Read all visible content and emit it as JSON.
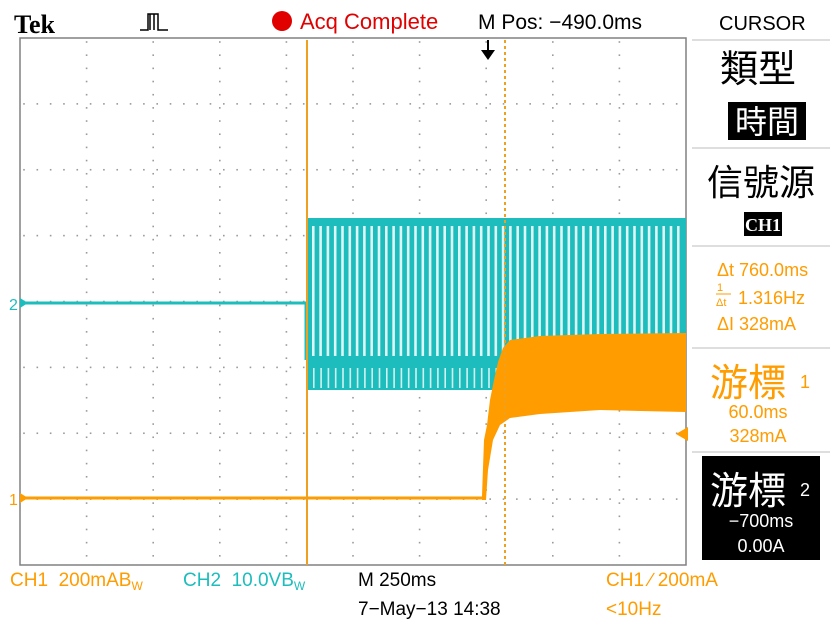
{
  "header": {
    "brand": "Tek",
    "trigger_icon": "pulse-trigger-icon",
    "status_icon": "record-dot-icon",
    "status": "Acq Complete",
    "mpos": "M Pos: −490.0ms"
  },
  "menu": {
    "title": "CURSOR",
    "type_label": "類型",
    "type_value": "時間",
    "source_label": "信號源",
    "source_value": "CH1",
    "delta_t": "Δt 760.0ms",
    "inv_delta_t": "1.316Hz",
    "delta_i": "ΔI 328mA",
    "cursor1_label": "游標",
    "cursor1_num": "1",
    "cursor1_time": "60.0ms",
    "cursor1_val": "328mA",
    "cursor2_label": "游標",
    "cursor2_num": "2",
    "cursor2_time": "−700ms",
    "cursor2_val": "0.00A"
  },
  "footer": {
    "ch1_scale": "CH1  200mA",
    "bw1": "B",
    "bw1_sub": "W",
    "ch2_scale": "CH2  10.0V",
    "bw2": "B",
    "bw2_sub": "W",
    "timebase": "M 250ms",
    "trigger": "CH1 ∕ 200mA",
    "date": "7−May−13 14:38",
    "freq": "<10Hz"
  },
  "markers": {
    "ch2": "2",
    "ch1": "1"
  },
  "colors": {
    "ch1": "#ff9c00",
    "ch2": "#1dbdbd",
    "status_dot": "#e00000",
    "grid": "#9a9a9a",
    "cursor_line": "#f0a020"
  }
}
